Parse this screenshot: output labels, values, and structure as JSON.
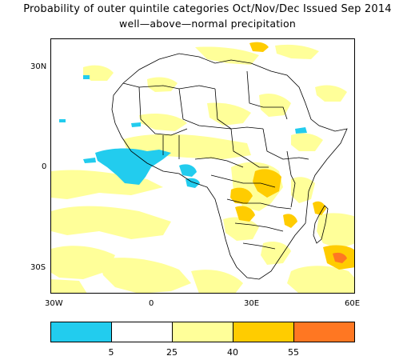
{
  "title": {
    "line1": "Probability of outer quintile categories Oct/Nov/Dec Issued Sep 2014",
    "line2": "well—above—normal precipitation"
  },
  "axes": {
    "lat_labels": [
      "30N",
      "0",
      "30S"
    ],
    "lon_labels": [
      "30W",
      "0",
      "30E",
      "60E"
    ]
  },
  "colorbar": {
    "labels": [
      "5",
      "25",
      "40",
      "55"
    ],
    "colors": [
      "#22ccee",
      "#ffffff",
      "#ffff99",
      "#ffcc00",
      "#ff7722"
    ]
  }
}
